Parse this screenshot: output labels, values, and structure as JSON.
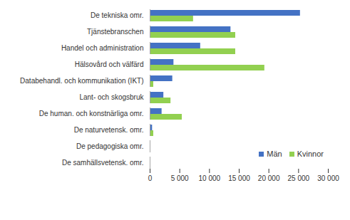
{
  "chart_data": {
    "type": "bar",
    "orientation": "horizontal",
    "categories": [
      "De tekniska omr.",
      "Tjänstebranschen",
      "Handel och administration",
      "Hälsovård och välfärd",
      "Databehandl. och kommunikation (IKT)",
      "Lant- och skogsbruk",
      "De human. och konstnärliga omr.",
      "De naturvetensk. omr.",
      "De pedagogiska omr.",
      "De samhällsvetensk. omr."
    ],
    "series": [
      {
        "name": "Män",
        "color": "#4472c4",
        "values": [
          25300,
          13600,
          8500,
          4000,
          3800,
          2300,
          2000,
          400,
          100,
          100
        ]
      },
      {
        "name": "Kvinnor",
        "color": "#92d050",
        "values": [
          7300,
          14400,
          14400,
          19300,
          600,
          3500,
          5400,
          600,
          100,
          50
        ]
      }
    ],
    "xlim": [
      0,
      30000
    ],
    "xticks": [
      0,
      {
        "value": 5000,
        "label": "5 000"
      },
      {
        "value": 10000,
        "label": "10 000"
      },
      {
        "value": 15000,
        "label": "15 000"
      },
      {
        "value": 20000,
        "label": "20 000"
      },
      {
        "value": 25000,
        "label": "25 000"
      },
      {
        "value": 30000,
        "label": "30 000"
      }
    ],
    "legend": "bottom-right",
    "grid": false
  }
}
